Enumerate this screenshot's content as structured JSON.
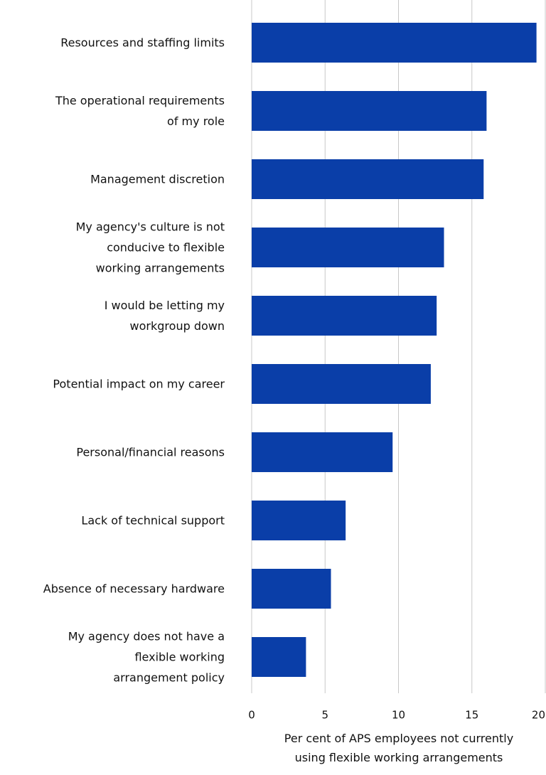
{
  "chart_data": {
    "type": "bar",
    "orientation": "horizontal",
    "categories": [
      "Resources and staffing limits",
      "The operational requirements\nof my role",
      "Management discretion",
      "My agency's culture is not\nconducive to flexible\nworking arrangements",
      "I would be letting my\nworkgroup down",
      "Potential impact on my career",
      "Personal/financial reasons",
      "Lack of technical support",
      "Absence of necessary hardware",
      "My agency does not have a\nflexible working\narrangement policy"
    ],
    "values": [
      19.4,
      16.0,
      15.8,
      13.1,
      12.6,
      12.2,
      9.6,
      6.4,
      5.4,
      3.7
    ],
    "color": "#0a3ea8",
    "xlim": [
      0,
      20
    ],
    "xticks": [
      0,
      5,
      10,
      15,
      20
    ],
    "grid": true,
    "x_label": "Per cent of APS employees not currently\nusing flexible working arrangements"
  }
}
